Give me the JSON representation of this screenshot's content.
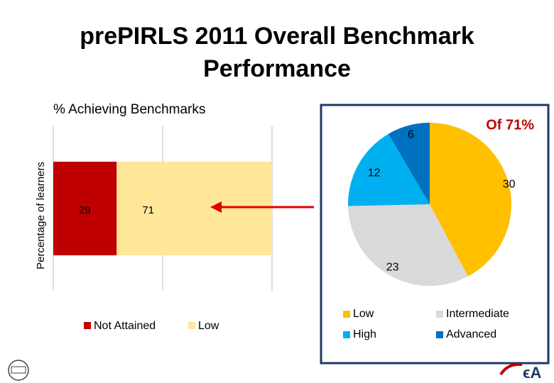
{
  "title": "prePIRLS 2011 Overall Benchmark Performance",
  "chart_data": [
    {
      "type": "bar",
      "orientation": "horizontal",
      "stacked": true,
      "title": "% Achieving Benchmarks",
      "ylabel": "Percentage of learners",
      "categories": [
        null
      ],
      "xlim": [
        0,
        100
      ],
      "grid": true,
      "legend": "bottom",
      "series": [
        {
          "name": "Not Attained",
          "color": "#c00000",
          "values": [
            29
          ]
        },
        {
          "name": "Low",
          "color": "#ffe699",
          "values": [
            71
          ]
        }
      ]
    },
    {
      "type": "pie",
      "title": "Of 71%",
      "legend": "bottom",
      "categories": [
        "Low",
        "Intermediate",
        "High",
        "Advanced"
      ],
      "values": [
        30,
        23,
        12,
        6
      ],
      "colors": [
        "#ffc000",
        "#d9d9d9",
        "#00b0f0",
        "#0070c0"
      ]
    }
  ]
}
